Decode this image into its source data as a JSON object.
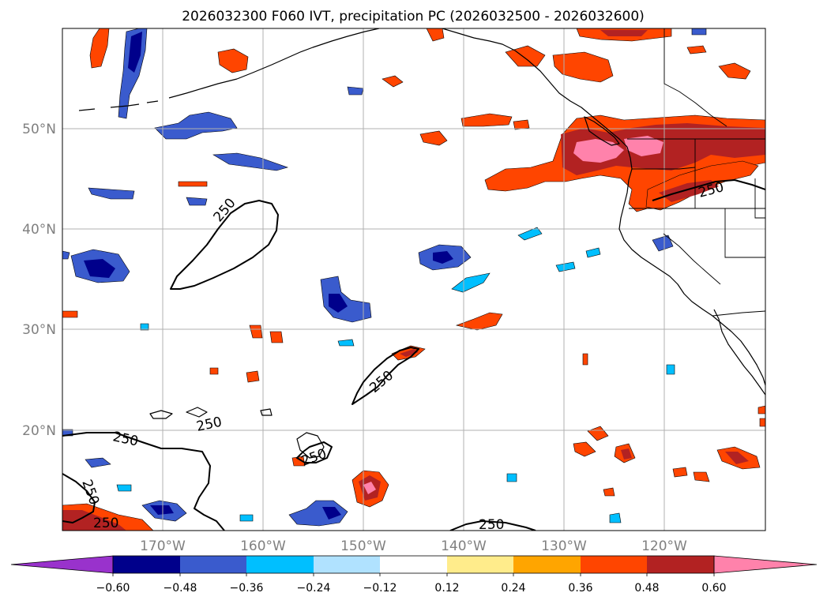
{
  "title": "2026032300 F060 IVT, precipitation PC (2026032500 - 2026032600)",
  "map": {
    "lon_labels": [
      "170°W",
      "160°W",
      "150°W",
      "140°W",
      "130°W",
      "120°W"
    ],
    "lat_labels": [
      "50°N",
      "40°N",
      "30°N",
      "20°N"
    ],
    "ivt_contour_value": "250",
    "ivt_contour_labels": [
      "250",
      "250",
      "250",
      "250",
      "250",
      "250",
      "250",
      "250"
    ]
  },
  "colorbar": {
    "ticks": [
      "−0.60",
      "−0.48",
      "−0.36",
      "−0.24",
      "−0.12",
      "0.12",
      "0.24",
      "0.36",
      "0.48",
      "0.60"
    ],
    "colors": {
      "under": "#9932cc",
      "c1": "#00008b",
      "c2": "#3a5bcd",
      "c3": "#00bfff",
      "c4": "#b0e2ff",
      "c5": "#ffffff",
      "c6": "#ffec8b",
      "c7": "#ffa500",
      "c8": "#ff4500",
      "c9": "#b22222",
      "over": "#ff82ab"
    }
  }
}
